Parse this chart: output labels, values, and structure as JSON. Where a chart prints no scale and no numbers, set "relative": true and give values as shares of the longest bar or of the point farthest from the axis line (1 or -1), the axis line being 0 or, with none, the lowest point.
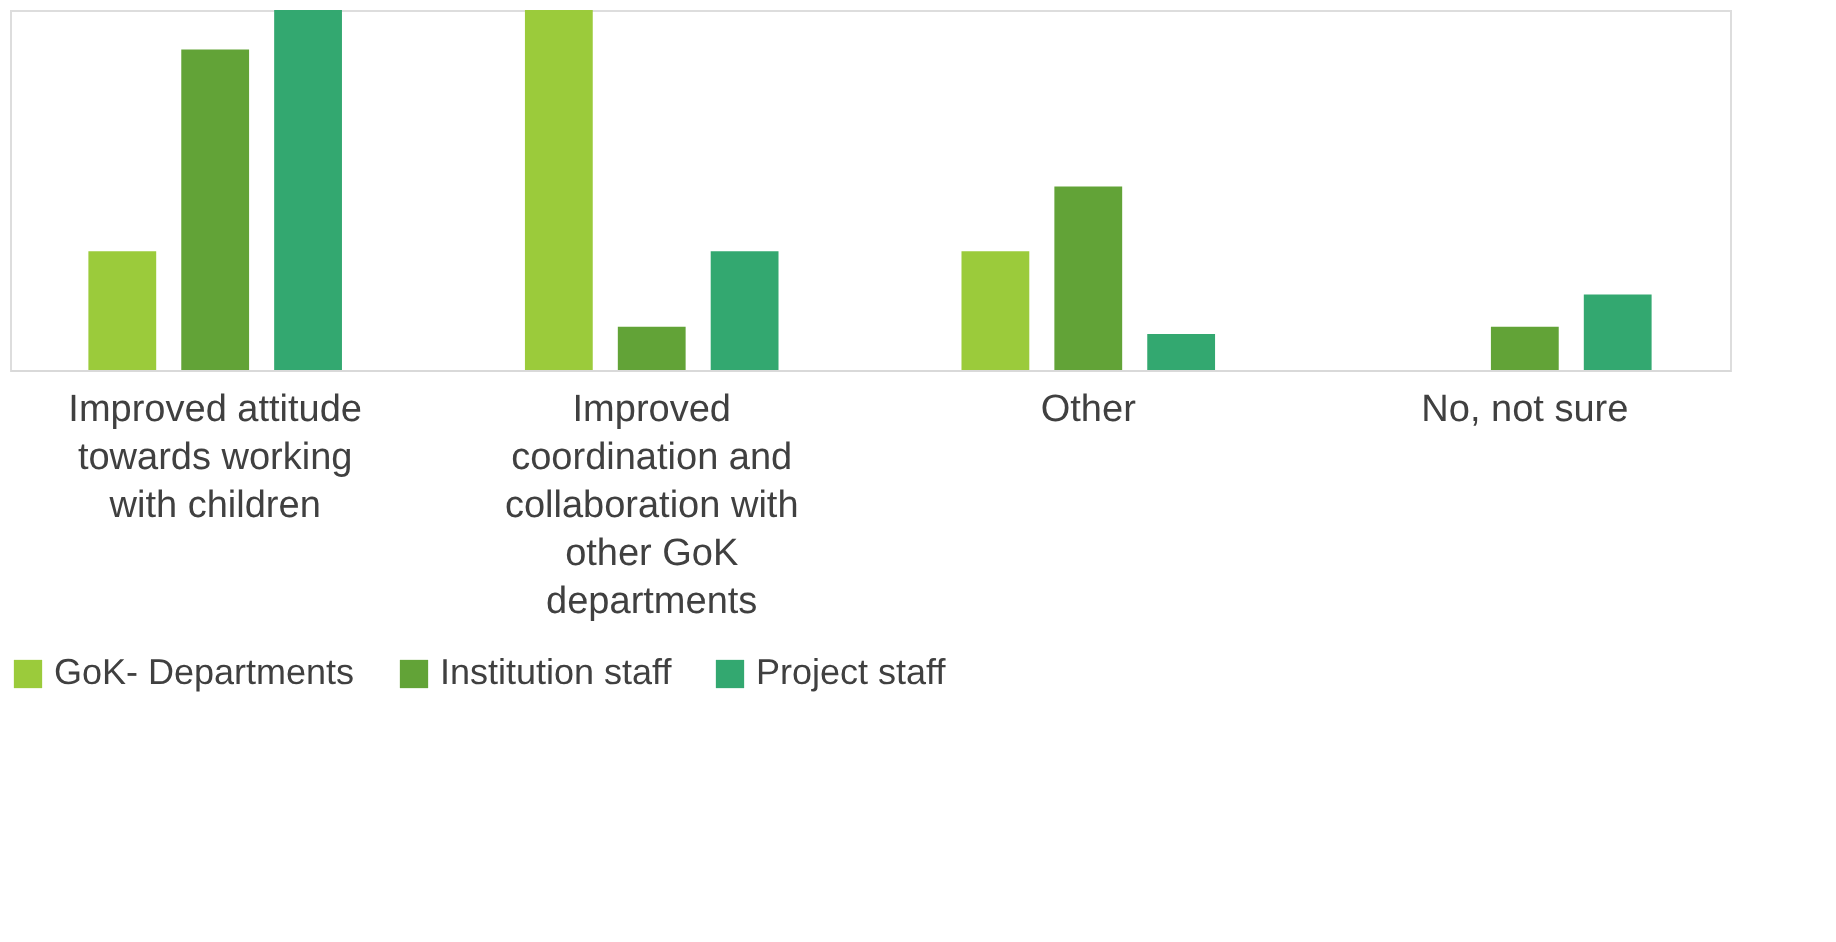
{
  "chart_data": {
    "type": "bar",
    "relative": true,
    "categories": [
      "Improved attitude towards working with children",
      "Improved coordination and collaboration with other GoK departments",
      "Other",
      "No, not sure"
    ],
    "series": [
      {
        "name": "GoK- Departments",
        "color": "#9bcb3b",
        "values": [
          0.33,
          1,
          0.33,
          null
        ]
      },
      {
        "name": "Institution staff",
        "color": "#62a337",
        "values": [
          0.89,
          0.12,
          0.51,
          0.12
        ]
      },
      {
        "name": "Project staff",
        "color": "#33a870",
        "values": [
          1,
          0.33,
          0.1,
          0.21
        ]
      }
    ],
    "legend": "bottom",
    "grid": false
  }
}
